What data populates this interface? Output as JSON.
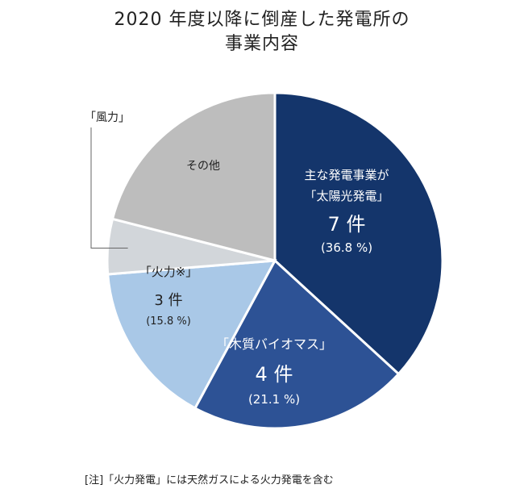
{
  "title_line1": "2020 年度以降に倒産した発電所の",
  "title_line2": "事業内容",
  "note": "[注]「火力発電」には天然ガスによる火力発電を含む",
  "chart_data": {
    "type": "pie",
    "title": "2020 年度以降に倒産した発電所の事業内容",
    "slices": [
      {
        "label_lines": [
          "主な発電事業が",
          "「太陽光発電」"
        ],
        "count_text": "7 件",
        "percent_text": "(36.8 %)",
        "value": 36.8,
        "color": "#14356b",
        "text_color": "#ffffff"
      },
      {
        "label_lines": [
          "「木質バイオマス」"
        ],
        "count_text": "4 件",
        "percent_text": "(21.1 %)",
        "value": 21.1,
        "color": "#2d5295",
        "text_color": "#ffffff"
      },
      {
        "label_lines": [
          "「火力※」"
        ],
        "count_text": "3 件",
        "percent_text": "(15.8 %)",
        "value": 15.8,
        "color": "#a9c8e7",
        "text_color": "#222222"
      },
      {
        "label_lines": [
          "「風力」"
        ],
        "count_text": "",
        "percent_text": "",
        "value": 5.3,
        "color": "#d2d6da",
        "text_color": "#222222"
      },
      {
        "label_lines": [
          "その他"
        ],
        "count_text": "",
        "percent_text": "",
        "value": 21.0,
        "color": "#bdbdbd",
        "text_color": "#222222"
      }
    ]
  }
}
